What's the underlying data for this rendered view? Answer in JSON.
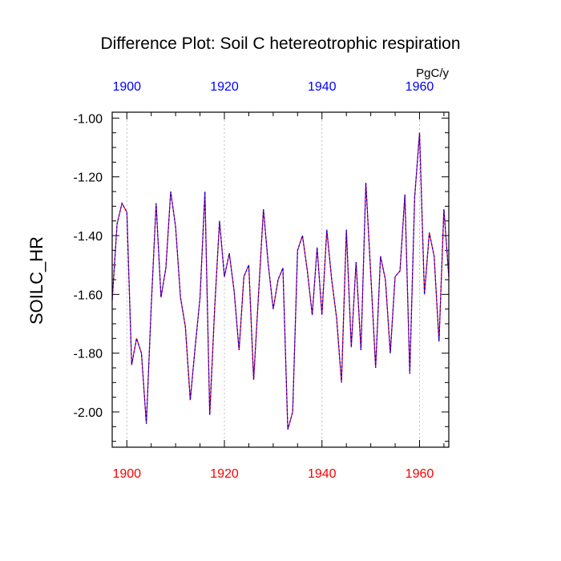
{
  "chart_data": {
    "type": "line",
    "title": "Difference Plot: Soil C hetereotrophic respiration",
    "units": "PgC/y",
    "ylabel": "SOILC_HR",
    "xlim": [
      1897,
      1966
    ],
    "ylim": [
      -2.12,
      -0.98
    ],
    "x_ticks": [
      1900,
      1920,
      1940,
      1960
    ],
    "x_tick_labels": [
      "1900",
      "1920",
      "1940",
      "1960"
    ],
    "y_ticks": [
      -2.0,
      -1.8,
      -1.6,
      -1.4,
      -1.2,
      -1.0
    ],
    "y_tick_labels": [
      "-2.00",
      "-1.80",
      "-1.60",
      "-1.40",
      "-1.20",
      "-1.00"
    ],
    "grid": "vertical dotted at x ticks",
    "colors": {
      "top_axis_labels": "#0000ff",
      "bottom_axis_labels": "#ff0000",
      "series_a": "#ff0000",
      "series_b": "#0000ff"
    },
    "x": [
      1897,
      1898,
      1899,
      1900,
      1901,
      1902,
      1903,
      1904,
      1905,
      1906,
      1907,
      1908,
      1909,
      1910,
      1911,
      1912,
      1913,
      1914,
      1915,
      1916,
      1917,
      1918,
      1919,
      1920,
      1921,
      1922,
      1923,
      1924,
      1925,
      1926,
      1927,
      1928,
      1929,
      1930,
      1931,
      1932,
      1933,
      1934,
      1935,
      1936,
      1937,
      1938,
      1939,
      1940,
      1941,
      1942,
      1943,
      1944,
      1945,
      1946,
      1947,
      1948,
      1949,
      1950,
      1951,
      1952,
      1953,
      1954,
      1955,
      1956,
      1957,
      1958,
      1959,
      1960,
      1961,
      1962,
      1963,
      1964,
      1965,
      1966
    ],
    "series": [
      {
        "values": [
          -1.62,
          -1.36,
          -1.29,
          -1.32,
          -1.84,
          -1.75,
          -1.8,
          -2.04,
          -1.64,
          -1.29,
          -1.61,
          -1.51,
          -1.25,
          -1.37,
          -1.61,
          -1.71,
          -1.96,
          -1.78,
          -1.61,
          -1.25,
          -2.01,
          -1.65,
          -1.35,
          -1.54,
          -1.46,
          -1.59,
          -1.79,
          -1.54,
          -1.5,
          -1.89,
          -1.6,
          -1.31,
          -1.5,
          -1.65,
          -1.55,
          -1.51,
          -2.06,
          -2.0,
          -1.45,
          -1.4,
          -1.52,
          -1.67,
          -1.44,
          -1.67,
          -1.38,
          -1.55,
          -1.68,
          -1.9,
          -1.38,
          -1.78,
          -1.49,
          -1.79,
          -1.22,
          -1.53,
          -1.85,
          -1.47,
          -1.55,
          -1.8,
          -1.54,
          -1.52,
          -1.26,
          -1.87,
          -1.27,
          -1.05,
          -1.6,
          -1.39,
          -1.47,
          -1.76,
          -1.31,
          -1.54
        ]
      }
    ]
  }
}
